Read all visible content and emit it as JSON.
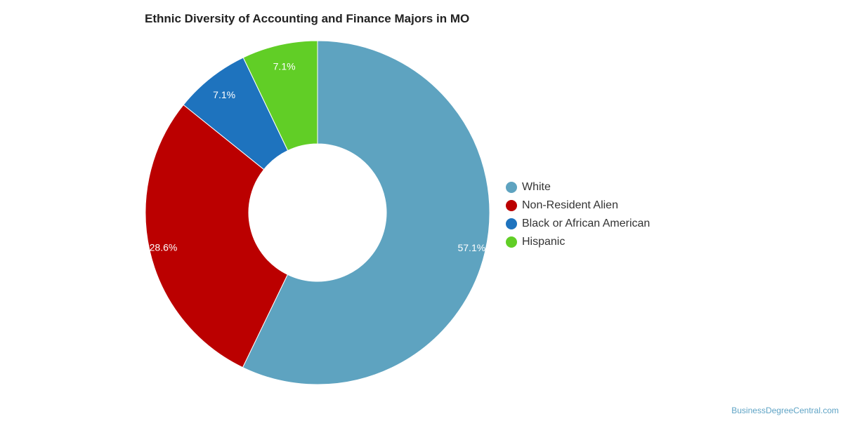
{
  "chart_data": {
    "type": "pie",
    "title": "Ethnic Diversity of Accounting and Finance Majors in MO",
    "categories": [
      "White",
      "Non-Resident Alien",
      "Black or African American",
      "Hispanic"
    ],
    "values": [
      57.1,
      28.6,
      7.1,
      7.1
    ],
    "labels": [
      "57.1%",
      "28.6%",
      "7.1%",
      "7.1%"
    ],
    "colors": [
      "#5ea3c0",
      "#bb0000",
      "#1e73be",
      "#61ce26"
    ],
    "donut": true,
    "legend_position": "right"
  },
  "credit": "BusinessDegreeCentral.com"
}
